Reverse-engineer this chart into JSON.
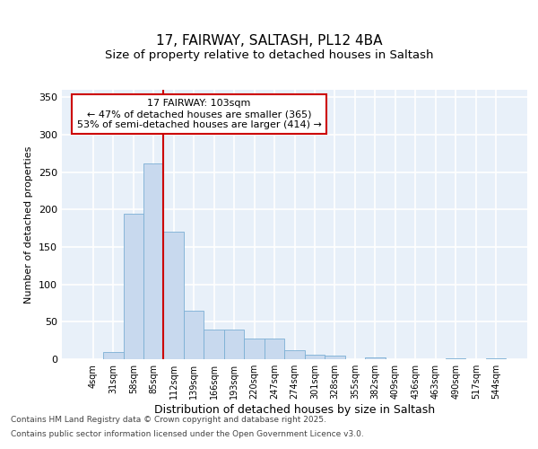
{
  "title_line1": "17, FAIRWAY, SALTASH, PL12 4BA",
  "title_line2": "Size of property relative to detached houses in Saltash",
  "xlabel": "Distribution of detached houses by size in Saltash",
  "ylabel": "Number of detached properties",
  "bar_color": "#c8d9ee",
  "bar_edge_color": "#7bafd4",
  "background_color": "#e8f0f9",
  "grid_color": "#ffffff",
  "vline_color": "#cc0000",
  "categories": [
    "4sqm",
    "31sqm",
    "58sqm",
    "85sqm",
    "112sqm",
    "139sqm",
    "166sqm",
    "193sqm",
    "220sqm",
    "247sqm",
    "274sqm",
    "301sqm",
    "328sqm",
    "355sqm",
    "382sqm",
    "409sqm",
    "436sqm",
    "463sqm",
    "490sqm",
    "517sqm",
    "544sqm"
  ],
  "values": [
    0,
    10,
    195,
    262,
    170,
    65,
    40,
    40,
    28,
    28,
    12,
    6,
    5,
    0,
    3,
    0,
    0,
    0,
    1,
    0,
    1
  ],
  "ylim": [
    0,
    360
  ],
  "yticks": [
    0,
    50,
    100,
    150,
    200,
    250,
    300,
    350
  ],
  "annotation_line1": "17 FAIRWAY: 103sqm",
  "annotation_line2": "← 47% of detached houses are smaller (365)",
  "annotation_line3": "53% of semi-detached houses are larger (414) →",
  "vline_x_pos": 3.5,
  "footer_line1": "Contains HM Land Registry data © Crown copyright and database right 2025.",
  "footer_line2": "Contains public sector information licensed under the Open Government Licence v3.0."
}
